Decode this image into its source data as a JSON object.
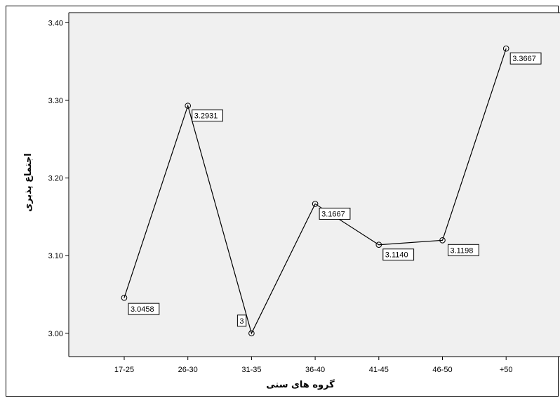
{
  "chart_data": {
    "type": "line",
    "title": "",
    "xlabel": "گروه های سنی",
    "ylabel": "اجتماع پذیری",
    "categories": [
      "17-25",
      "26-30",
      "31-35",
      "36-40",
      "41-45",
      "46-50",
      "+50"
    ],
    "series": [
      {
        "values": [
          3.0458,
          3.2931,
          3.0,
          3.1667,
          3.114,
          3.1198,
          3.3667
        ],
        "labels": [
          "3.0458",
          "3.2931",
          "3",
          "3.1667",
          "3.1140",
          "3.1198",
          "3.3667"
        ]
      }
    ],
    "ylim": [
      2.97,
      3.413
    ],
    "yticks": [
      3.0,
      3.1,
      3.2,
      3.3,
      3.4
    ],
    "ytick_labels": [
      "3.00",
      "3.10",
      "3.20",
      "3.30",
      "3.40"
    ],
    "grid": false,
    "background_color": "#f0f0f0",
    "line_color": "#000000",
    "marker": "open-circle"
  }
}
